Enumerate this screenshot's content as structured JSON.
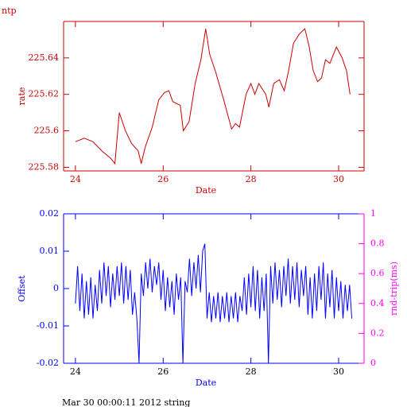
{
  "chart_data": [
    {
      "type": "line",
      "title": "ntp",
      "xlabel": "Date",
      "ylabel": "rate",
      "color": "#cc0000",
      "xlim": [
        23.73,
        30.58
      ],
      "xticks": [
        24,
        26,
        28,
        30
      ],
      "ylim": [
        225.578,
        225.66
      ],
      "yticks": [
        225.58,
        225.6,
        225.62,
        225.64
      ],
      "x": [
        24.0,
        24.2,
        24.4,
        24.6,
        24.8,
        24.9,
        25.0,
        25.14,
        25.28,
        25.43,
        25.5,
        25.59,
        25.75,
        25.9,
        26.03,
        26.13,
        26.22,
        26.39,
        26.46,
        26.59,
        26.73,
        26.86,
        26.97,
        27.06,
        27.2,
        27.38,
        27.56,
        27.65,
        27.74,
        27.89,
        28.0,
        28.09,
        28.18,
        28.34,
        28.41,
        28.52,
        28.65,
        28.76,
        28.86,
        28.97,
        29.1,
        29.23,
        29.33,
        29.42,
        29.52,
        29.61,
        29.7,
        29.8,
        29.95,
        30.08,
        30.18,
        30.26
      ],
      "values": [
        225.594,
        225.596,
        225.594,
        225.589,
        225.585,
        225.582,
        225.61,
        225.6,
        225.593,
        225.589,
        225.582,
        225.591,
        225.602,
        225.617,
        225.621,
        225.622,
        225.616,
        225.614,
        225.6,
        225.605,
        225.626,
        225.639,
        225.656,
        225.642,
        225.632,
        225.617,
        225.601,
        225.604,
        225.602,
        225.62,
        225.626,
        225.62,
        225.626,
        225.62,
        225.613,
        225.626,
        225.628,
        225.622,
        225.633,
        225.648,
        225.653,
        225.656,
        225.646,
        225.633,
        225.627,
        225.629,
        225.639,
        225.637,
        225.646,
        225.64,
        225.633,
        225.62
      ]
    },
    {
      "type": "line",
      "xlabel": "Date",
      "ylabel": "Offset",
      "y2label": "rnd-trip(ms)",
      "color": "#0000ff",
      "y2color": "#ff00ff",
      "xlim": [
        23.73,
        30.58
      ],
      "xticks": [
        24,
        26,
        28,
        30
      ],
      "ylim": [
        -0.02,
        0.02
      ],
      "yticks": [
        -0.02,
        -0.01,
        0,
        0.01,
        0.02
      ],
      "y2lim": [
        0,
        1
      ],
      "y2ticks": [
        0,
        0.2,
        0.4,
        0.6,
        0.8,
        1
      ],
      "x": [
        24.0,
        24.05,
        24.1,
        24.15,
        24.2,
        24.25,
        24.3,
        24.35,
        24.4,
        24.45,
        24.5,
        24.55,
        24.6,
        24.65,
        24.7,
        24.75,
        24.8,
        24.85,
        24.9,
        24.95,
        25.0,
        25.05,
        25.1,
        25.15,
        25.2,
        25.25,
        25.3,
        25.35,
        25.4,
        25.45,
        25.5,
        25.55,
        25.6,
        25.65,
        25.7,
        25.75,
        25.8,
        25.85,
        25.9,
        25.95,
        26.0,
        26.05,
        26.1,
        26.15,
        26.2,
        26.25,
        26.3,
        26.35,
        26.4,
        26.45,
        26.5,
        26.55,
        26.6,
        26.65,
        26.7,
        26.75,
        26.8,
        26.85,
        26.9,
        26.95,
        27.0,
        27.05,
        27.1,
        27.15,
        27.2,
        27.25,
        27.3,
        27.35,
        27.4,
        27.45,
        27.5,
        27.55,
        27.6,
        27.65,
        27.7,
        27.75,
        27.8,
        27.85,
        27.9,
        27.95,
        28.0,
        28.05,
        28.1,
        28.15,
        28.2,
        28.25,
        28.3,
        28.35,
        28.4,
        28.45,
        28.5,
        28.55,
        28.6,
        28.65,
        28.7,
        28.75,
        28.8,
        28.85,
        28.9,
        28.95,
        29.0,
        29.05,
        29.1,
        29.15,
        29.2,
        29.25,
        29.3,
        29.35,
        29.4,
        29.45,
        29.5,
        29.55,
        29.6,
        29.65,
        29.7,
        29.75,
        29.8,
        29.85,
        29.9,
        29.95,
        30.0,
        30.05,
        30.1,
        30.15,
        30.2,
        30.25,
        30.3
      ],
      "values": [
        -0.004,
        0.006,
        -0.006,
        0.004,
        -0.008,
        0.002,
        -0.007,
        0.003,
        -0.008,
        0.001,
        -0.006,
        0.005,
        -0.004,
        0.007,
        -0.002,
        0.006,
        -0.005,
        0.004,
        -0.003,
        0.006,
        -0.002,
        0.007,
        -0.004,
        0.006,
        -0.003,
        0.005,
        -0.007,
        -0.001,
        -0.008,
        -0.02,
        0.004,
        -0.002,
        0.007,
        0,
        0.008,
        -0.001,
        0.006,
        0.001,
        0.007,
        -0.003,
        0.005,
        -0.006,
        0.003,
        -0.005,
        0.002,
        -0.007,
        0.004,
        -0.003,
        0.003,
        -0.02,
        0.002,
        -0.001,
        0.008,
        -0.002,
        0.007,
        0,
        0.009,
        -0.001,
        0.01,
        0.012,
        -0.008,
        -0.001,
        -0.009,
        -0.002,
        -0.008,
        -0.001,
        -0.009,
        -0.002,
        -0.008,
        -0.001,
        -0.009,
        -0.002,
        -0.008,
        -0.001,
        -0.009,
        -0.002,
        -0.006,
        0.003,
        -0.007,
        0.004,
        -0.005,
        0.006,
        -0.006,
        0.005,
        -0.008,
        0.003,
        -0.006,
        0.004,
        -0.02,
        0.006,
        -0.004,
        0.007,
        -0.003,
        0.005,
        -0.005,
        0.006,
        -0.002,
        0.008,
        -0.004,
        0.006,
        -0.003,
        0.007,
        -0.005,
        0.005,
        -0.002,
        0.006,
        -0.007,
        0.003,
        -0.008,
        0.004,
        -0.006,
        0.006,
        -0.003,
        0.007,
        -0.008,
        0.004,
        -0.005,
        0.005,
        -0.008,
        0.003,
        -0.006,
        0.002,
        -0.008,
        0.001,
        -0.006,
        0.001,
        -0.008
      ]
    }
  ],
  "footer": "Mar 30 00:00:11 2012 string"
}
